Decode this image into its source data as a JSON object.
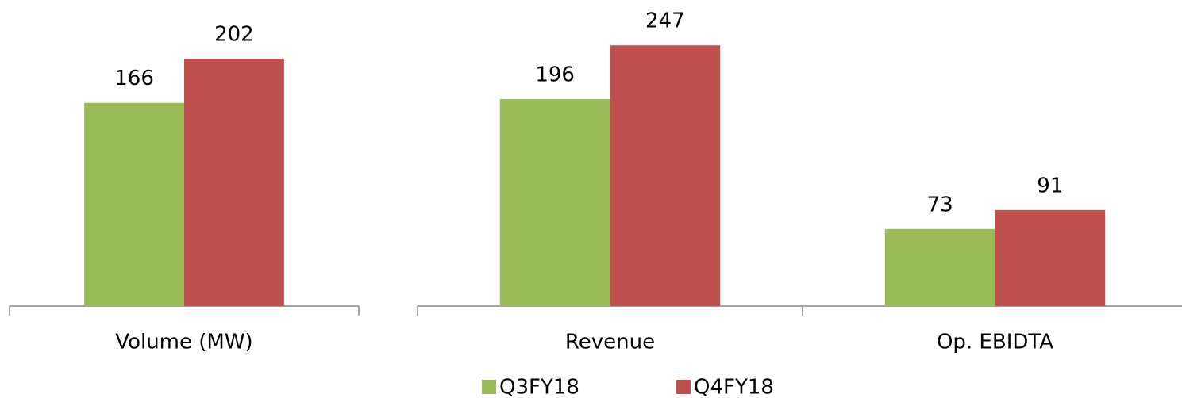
{
  "chart_data": [
    {
      "type": "bar",
      "categories": [
        "Volume (MW)"
      ],
      "series": [
        {
          "name": "Q3FY18",
          "color": "#9bbb59",
          "values": [
            166
          ]
        },
        {
          "name": "Q4FY18",
          "color": "#c0504d",
          "values": [
            202
          ]
        }
      ],
      "ylim": [
        0,
        250
      ]
    },
    {
      "type": "bar",
      "categories": [
        "Revenue",
        "Op. EBIDTA"
      ],
      "series": [
        {
          "name": "Q3FY18",
          "color": "#9bbb59",
          "values": [
            196,
            73
          ]
        },
        {
          "name": "Q4FY18",
          "color": "#c0504d",
          "values": [
            247,
            91
          ]
        }
      ],
      "ylim": [
        0,
        290
      ]
    }
  ]
}
